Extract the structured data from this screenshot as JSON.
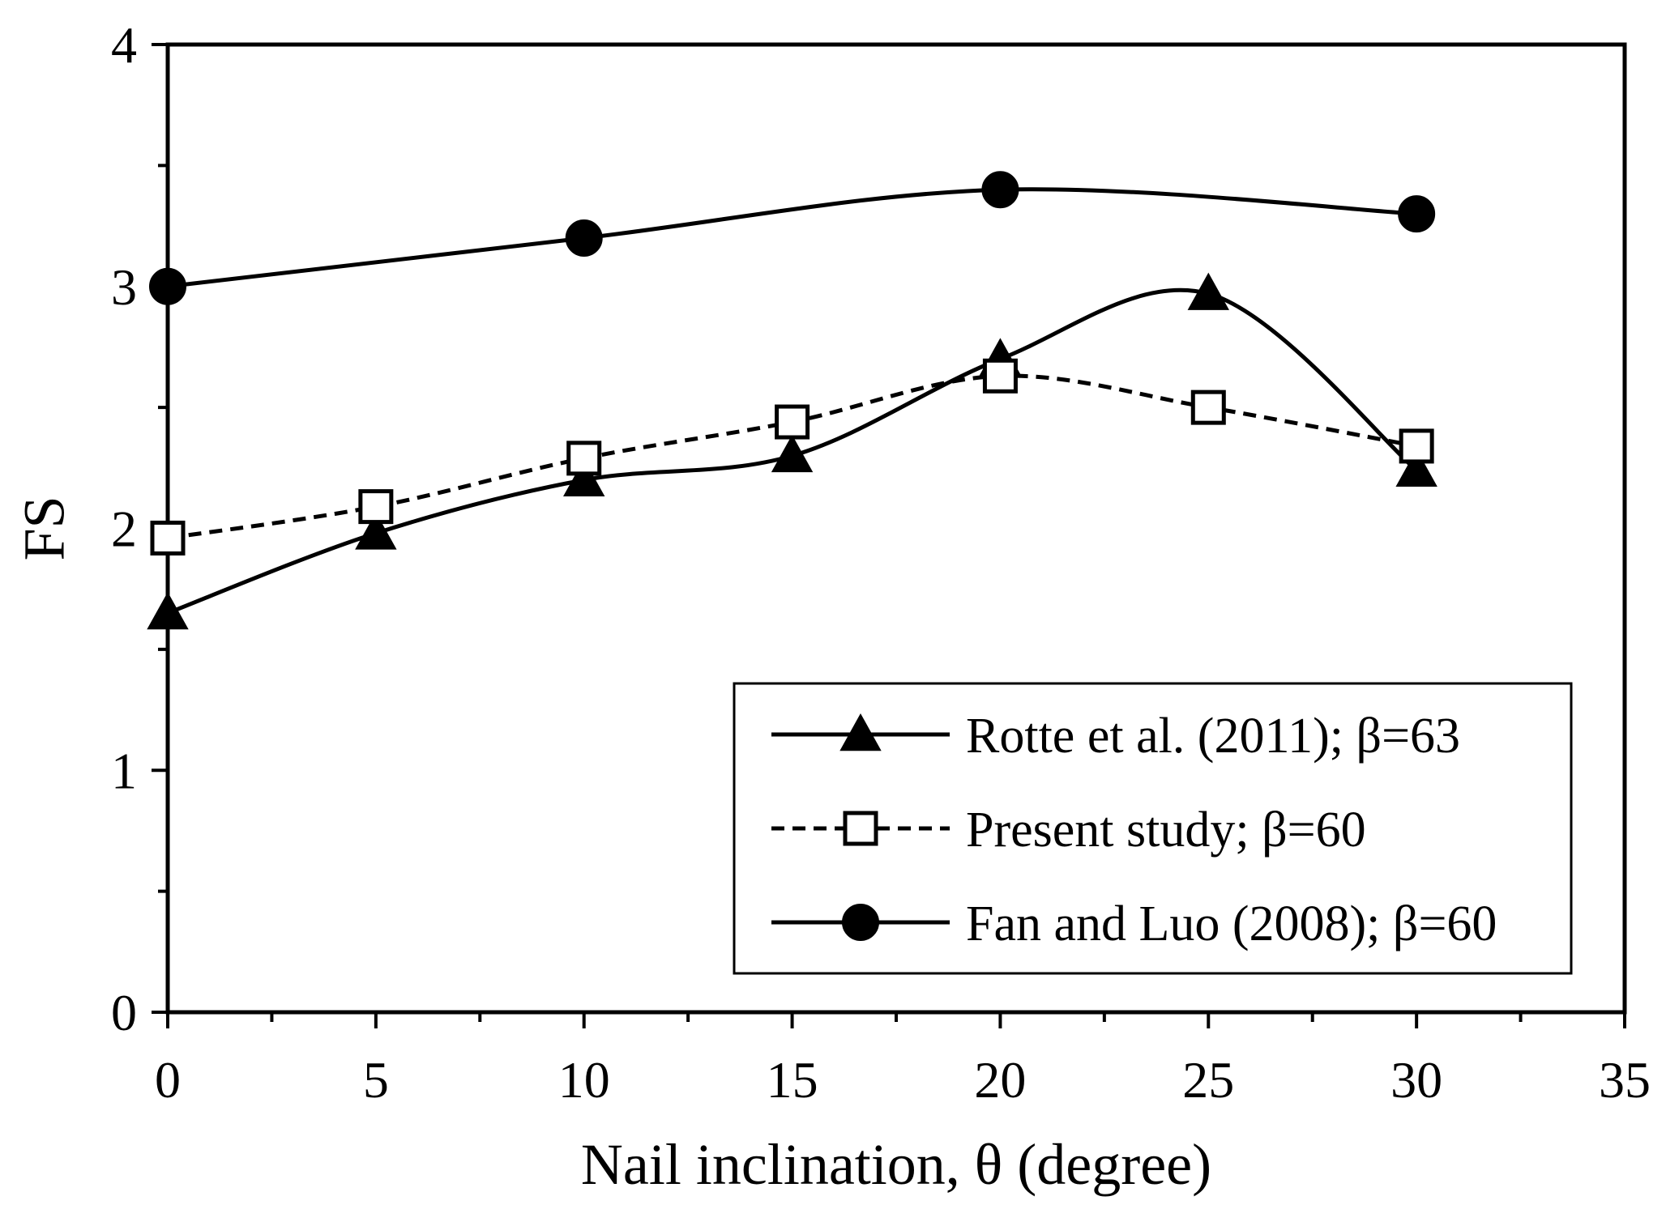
{
  "chart_data": {
    "type": "line",
    "title": "",
    "xlabel": "Nail inclination, θ (degree)",
    "ylabel": "FS",
    "xlim": [
      0,
      35
    ],
    "ylim": [
      0,
      4
    ],
    "xticks": [
      0,
      5,
      10,
      15,
      20,
      25,
      30,
      35
    ],
    "yticks": [
      0,
      1,
      2,
      3,
      4
    ],
    "xtick_labels": [
      "0",
      "5",
      "10",
      "15",
      "20",
      "25",
      "30",
      "35"
    ],
    "ytick_labels": [
      "0",
      "1",
      "2",
      "3",
      "4"
    ],
    "grid": false,
    "legend_position": "lower-right",
    "series": [
      {
        "name": "Rotte et al. (2011); β=63",
        "x": [
          0,
          5,
          10,
          15,
          20,
          25,
          30
        ],
        "values": [
          1.65,
          1.98,
          2.2,
          2.3,
          2.7,
          2.97,
          2.24
        ],
        "marker": "triangle-filled",
        "line": "solid",
        "color": "#000000"
      },
      {
        "name": "Present study; β=60",
        "x": [
          0,
          5,
          10,
          15,
          20,
          25,
          30
        ],
        "values": [
          1.96,
          2.09,
          2.29,
          2.44,
          2.63,
          2.5,
          2.34
        ],
        "marker": "square-open",
        "line": "dashed",
        "color": "#000000"
      },
      {
        "name": "Fan and Luo (2008); β=60",
        "x": [
          0,
          10,
          20,
          30
        ],
        "values": [
          3.0,
          3.2,
          3.4,
          3.3
        ],
        "marker": "circle-filled",
        "line": "solid",
        "color": "#000000"
      }
    ]
  }
}
